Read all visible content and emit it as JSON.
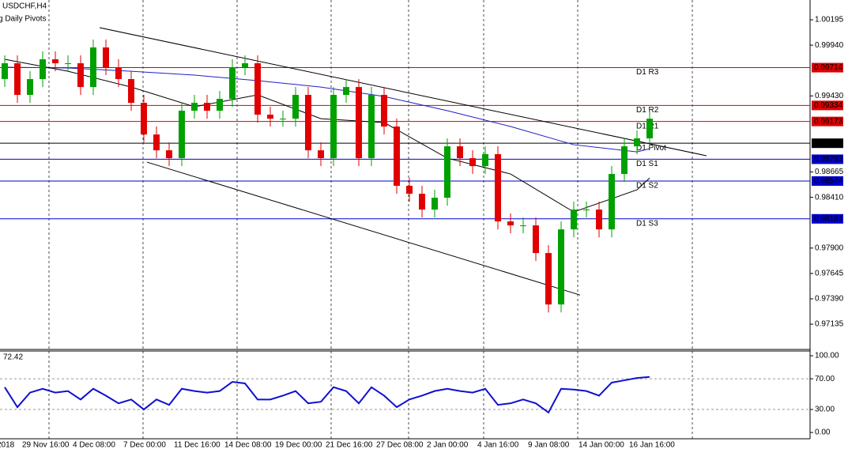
{
  "chart_data": [
    {
      "type": "candlestick",
      "title": "USDCHF,H4",
      "subtitle": "g Daily Pivots",
      "categories": [
        "2018",
        null,
        "29 Nov 16:00",
        null,
        null,
        null,
        "4 Dec 08:00",
        null,
        null,
        null,
        "7 Dec 00:00",
        null,
        null,
        null,
        "11 Dec 16:00",
        null,
        null,
        null,
        "14 Dec 08:00",
        null,
        null,
        null,
        "19 Dec 00:00",
        null,
        null,
        null,
        "21 Dec 16:00",
        null,
        null,
        null,
        "27 Dec 08:00",
        null,
        null,
        null,
        "2 Jan 00:00",
        null,
        null,
        null,
        "4 Jan 16:00",
        null,
        null,
        null,
        "9 Jan 08:00",
        null,
        null,
        null,
        "14 Jan 00:00",
        null,
        null,
        null,
        "16 Jan 16:00",
        null
      ],
      "open": [
        0.996,
        0.99758,
        0.9944,
        0.99599,
        0.99798,
        0.99758,
        0.99758,
        0.99519,
        0.99917,
        0.99718,
        0.99599,
        0.9936,
        0.99042,
        0.98883,
        0.98804,
        0.99281,
        0.9936,
        0.99281,
        0.994,
        0.99718,
        0.99758,
        0.99241,
        0.99201,
        0.99201,
        0.9944,
        0.98883,
        0.98804,
        0.9944,
        0.99519,
        0.98804,
        0.9944,
        0.99122,
        0.98526,
        0.98446,
        0.98287,
        0.98406,
        0.98923,
        0.98804,
        0.98724,
        0.98844,
        0.98168,
        0.98128,
        0.98128,
        0.9785,
        0.97333,
        0.98088,
        0.98287,
        0.98287,
        0.98088,
        0.98645,
        0.98923,
        0.99003
      ],
      "high": [
        0.99838,
        0.99838,
        0.99679,
        0.99878,
        0.99878,
        0.99838,
        0.99838,
        0.99997,
        0.99997,
        0.99798,
        0.99679,
        0.9944,
        0.99122,
        0.98963,
        0.99361,
        0.9944,
        0.9944,
        0.9948,
        0.99798,
        0.99838,
        0.99838,
        0.99321,
        0.99281,
        0.9952,
        0.9952,
        0.98963,
        0.9952,
        0.99599,
        0.99599,
        0.9952,
        0.9952,
        0.99202,
        0.98606,
        0.98526,
        0.98486,
        0.99003,
        0.99003,
        0.98884,
        0.98924,
        0.98924,
        0.98248,
        0.98208,
        0.98208,
        0.9793,
        0.98168,
        0.98367,
        0.98367,
        0.98367,
        0.98725,
        0.99003,
        0.99083,
        0.99281
      ],
      "low": [
        0.9952,
        0.9936,
        0.9936,
        0.99519,
        0.99678,
        0.99678,
        0.99439,
        0.99439,
        0.99638,
        0.99519,
        0.9928,
        0.98962,
        0.98803,
        0.98724,
        0.98724,
        0.99201,
        0.99201,
        0.99201,
        0.9932,
        0.99638,
        0.99161,
        0.99121,
        0.99121,
        0.99121,
        0.98803,
        0.98724,
        0.98724,
        0.9936,
        0.98724,
        0.98724,
        0.99042,
        0.98446,
        0.98366,
        0.98207,
        0.98207,
        0.98326,
        0.98724,
        0.98644,
        0.98644,
        0.98088,
        0.98048,
        0.98048,
        0.9777,
        0.97253,
        0.97253,
        0.98008,
        0.98207,
        0.98008,
        0.98008,
        0.98565,
        0.98843,
        0.98923
      ],
      "close": [
        0.99758,
        0.9944,
        0.99599,
        0.99798,
        0.99758,
        0.99758,
        0.99519,
        0.99917,
        0.99718,
        0.99599,
        0.9936,
        0.99042,
        0.98883,
        0.98804,
        0.99281,
        0.9936,
        0.99281,
        0.994,
        0.99718,
        0.99758,
        0.99241,
        0.99201,
        0.99201,
        0.9944,
        0.98883,
        0.98804,
        0.9944,
        0.99519,
        0.98804,
        0.9944,
        0.99122,
        0.98526,
        0.98446,
        0.98287,
        0.98406,
        0.98923,
        0.98804,
        0.98724,
        0.98844,
        0.98168,
        0.98128,
        0.98128,
        0.9785,
        0.97333,
        0.98088,
        0.98287,
        0.98287,
        0.98088,
        0.98645,
        0.98923,
        0.99003,
        0.99201
      ],
      "up_color": "#00a000",
      "down_color": "#e00000",
      "moving_averages": [
        {
          "color": "#1f1fc8",
          "x": [
            0,
            5,
            10,
            15,
            20,
            25,
            30,
            35,
            40,
            45,
            50,
            51
          ],
          "values": [
            0.99718,
            0.9971,
            0.99678,
            0.99639,
            0.99583,
            0.99519,
            0.99424,
            0.99281,
            0.99122,
            0.98939,
            0.98867,
            0.98899
          ]
        },
        {
          "color": "#000000",
          "x": [
            0,
            5,
            10,
            15,
            20,
            25,
            30,
            35,
            40,
            45,
            50,
            51
          ],
          "values": [
            0.99798,
            0.99678,
            0.99519,
            0.99321,
            0.9944,
            0.99201,
            0.99162,
            0.98804,
            0.98645,
            0.98263,
            0.98486,
            0.98605
          ]
        }
      ],
      "trendlines": [
        {
          "color": "#000000",
          "x": [
            7.5,
            55.5
          ],
          "values": [
            1.00116,
            0.98828
          ]
        },
        {
          "color": "#000000",
          "x": [
            11.25,
            45.5
          ],
          "values": [
            0.98764,
            0.97428
          ]
        }
      ],
      "pivots": [
        {
          "name": "D1 R3",
          "value": 0.99714,
          "color": "#dd0000"
        },
        {
          "name": "D1 R2",
          "value": 0.99334,
          "color": "#dd0000"
        },
        {
          "name": "D1 R1",
          "value": 0.99173,
          "color": "#dd0000"
        },
        {
          "name": "D1 Pivot",
          "value": 0.98954,
          "color": "#000000"
        },
        {
          "name": "D1 S1",
          "value": 0.98793,
          "color": "#0000cc"
        },
        {
          "name": "D1 S2",
          "value": 0.98574,
          "color": "#0000cc"
        },
        {
          "name": "D1 S3",
          "value": 0.98194,
          "color": "#0000cc"
        }
      ],
      "ylim": [
        0.96881,
        1.00394
      ],
      "yticks": [
        {
          "value": 1.00195,
          "label": "1.00195"
        },
        {
          "value": 0.9994,
          "label": "0.99940"
        },
        {
          "value": 0.9943,
          "label": "0.99430"
        },
        {
          "value": 0.98665,
          "label": "0.98665"
        },
        {
          "value": 0.9841,
          "label": "0.98410"
        },
        {
          "value": 0.979,
          "label": "0.97900"
        },
        {
          "value": 0.97645,
          "label": "0.97645"
        },
        {
          "value": 0.9739,
          "label": "0.97390"
        },
        {
          "value": 0.97135,
          "label": "0.97135"
        }
      ]
    },
    {
      "type": "line",
      "color": "#1010d0",
      "values": [
        59,
        33,
        52,
        57,
        52,
        54,
        43,
        57,
        48,
        38,
        43,
        30,
        43,
        36,
        57,
        54,
        52,
        54,
        66,
        64,
        43,
        43,
        48,
        54,
        38,
        40,
        59,
        54,
        38,
        59,
        48,
        33,
        43,
        48,
        54,
        57,
        54,
        52,
        57,
        36,
        38,
        43,
        38,
        26,
        57,
        56,
        54,
        48,
        65,
        68,
        71,
        72.42
      ],
      "ylim": [
        -8.2,
        106.2
      ],
      "yticks": [
        {
          "value": 100,
          "label": "100.00"
        },
        {
          "value": 70,
          "label": "70.00"
        },
        {
          "value": 30,
          "label": "30.00"
        },
        {
          "value": 0,
          "label": "0.00"
        }
      ]
    }
  ]
}
